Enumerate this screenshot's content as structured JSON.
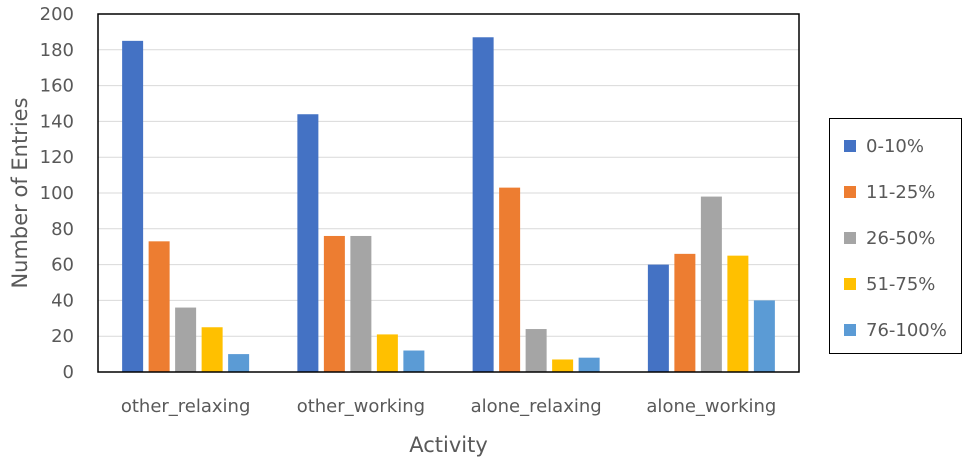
{
  "chart_data": {
    "type": "bar",
    "title": "",
    "xlabel": "Activity",
    "ylabel": "Number of Entries",
    "ylim": [
      0,
      200
    ],
    "yticks": [
      0,
      20,
      40,
      60,
      80,
      100,
      120,
      140,
      160,
      180,
      200
    ],
    "grid": true,
    "legend_position": "right",
    "categories": [
      "other_relaxing",
      "other_working",
      "alone_relaxing",
      "alone_working"
    ],
    "series": [
      {
        "name": "0-10%",
        "color": "#4472C4",
        "values": [
          185,
          144,
          187,
          60
        ]
      },
      {
        "name": "11-25%",
        "color": "#ED7D31",
        "values": [
          73,
          76,
          103,
          66
        ]
      },
      {
        "name": "26-50%",
        "color": "#A5A5A5",
        "values": [
          36,
          76,
          24,
          98
        ]
      },
      {
        "name": "51-75%",
        "color": "#FFC000",
        "values": [
          25,
          21,
          7,
          65
        ]
      },
      {
        "name": "76-100%",
        "color": "#5B9BD5",
        "values": [
          10,
          12,
          8,
          40
        ]
      }
    ]
  }
}
